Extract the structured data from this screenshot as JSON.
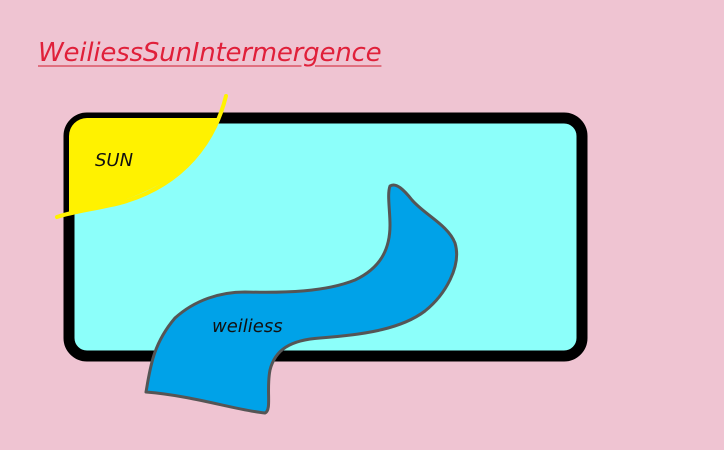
{
  "title": "WeiliessSunIntermergence",
  "labels": {
    "sun": "SUN",
    "weiliess": "weiliess"
  },
  "colors": {
    "background": "#efc4d2",
    "title_text": "#e0203a",
    "box_fill": "#8cfffa",
    "box_border": "#000000",
    "sun_fill": "#fff200",
    "weiliess_fill": "#00a2e8",
    "weiliess_outline": "#555555"
  }
}
